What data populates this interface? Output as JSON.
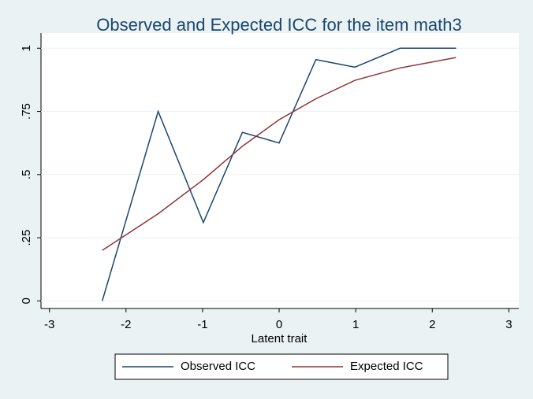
{
  "chart_data": {
    "type": "line",
    "title": "Observed and Expected ICC for the item math3",
    "x_label": "Latent trait",
    "x": [
      -2.31,
      -1.58,
      -0.99,
      -0.48,
      0.0,
      0.48,
      0.99,
      1.58,
      2.31
    ],
    "series": [
      {
        "name": "Observed ICC",
        "color": "#1a476f",
        "values": [
          0,
          0.75,
          0.31,
          0.667,
          0.625,
          0.955,
          0.925,
          1,
          1
        ]
      },
      {
        "name": "Expected ICC",
        "color": "#90353b",
        "values": [
          0.2,
          0.345,
          0.48,
          0.612,
          0.717,
          0.8,
          0.873,
          0.922,
          0.963
        ]
      }
    ],
    "xlim": [
      -3.11,
      3.13
    ],
    "xticks": [
      -3,
      -2,
      -1,
      0,
      1,
      2,
      3
    ],
    "ylim": [
      -0.03,
      1.06
    ],
    "yticks": [
      0,
      {
        "value": 0.25,
        "label": ".25"
      },
      {
        "value": 0.5,
        "label": ".5"
      },
      {
        "value": 0.75,
        "label": ".75"
      },
      1
    ],
    "grid": true,
    "legend": "bottom"
  }
}
